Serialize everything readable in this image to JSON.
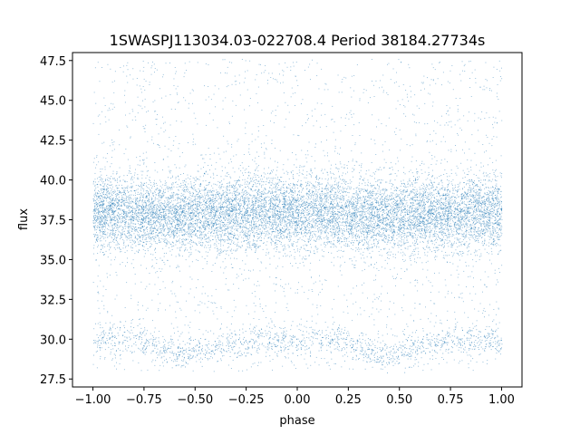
{
  "chart_data": {
    "type": "scatter",
    "title": "1SWASPJ113034.03-022708.4 Period 38184.27734s",
    "xlabel": "phase",
    "ylabel": "flux",
    "xlim": [
      -1.1,
      1.1
    ],
    "ylim": [
      27.0,
      48.0
    ],
    "xticks": [
      "−1.00",
      "−0.75",
      "−0.50",
      "−0.25",
      "0.00",
      "0.25",
      "0.50",
      "0.75",
      "1.00"
    ],
    "xtick_values": [
      -1.0,
      -0.75,
      -0.5,
      -0.25,
      0.0,
      0.25,
      0.5,
      0.75,
      1.0
    ],
    "yticks": [
      "27.5",
      "30.0",
      "32.5",
      "35.0",
      "37.5",
      "40.0",
      "42.5",
      "45.0",
      "47.5"
    ],
    "ytick_values": [
      27.5,
      30.0,
      32.5,
      35.0,
      37.5,
      40.0,
      42.5,
      45.0,
      47.5
    ],
    "grid": false,
    "legend": "none",
    "point_color": "#1f77b4",
    "phase_range": [
      -1.0,
      1.0
    ],
    "series": [
      {
        "description_points": "dense main band of flux values vs phase",
        "x": [
          -1.0,
          -0.75,
          -0.5,
          -0.25,
          0.0,
          0.25,
          0.5,
          0.75,
          1.0
        ],
        "y": [
          38.0,
          37.9,
          37.8,
          37.9,
          38.0,
          37.9,
          37.8,
          37.9,
          38.0
        ],
        "y_spread": [
          1.8,
          1.8,
          1.8,
          1.8,
          1.8,
          1.8,
          1.8,
          1.8,
          1.8
        ]
      },
      {
        "description_points": "faint lower band",
        "x": [
          -1.0,
          -0.75,
          -0.6,
          -0.4,
          -0.2,
          0.0,
          0.2,
          0.4,
          0.6,
          0.75,
          1.0
        ],
        "y": [
          29.9,
          30.0,
          29.0,
          29.5,
          30.0,
          29.9,
          30.0,
          29.0,
          29.5,
          30.0,
          29.9
        ]
      }
    ]
  }
}
